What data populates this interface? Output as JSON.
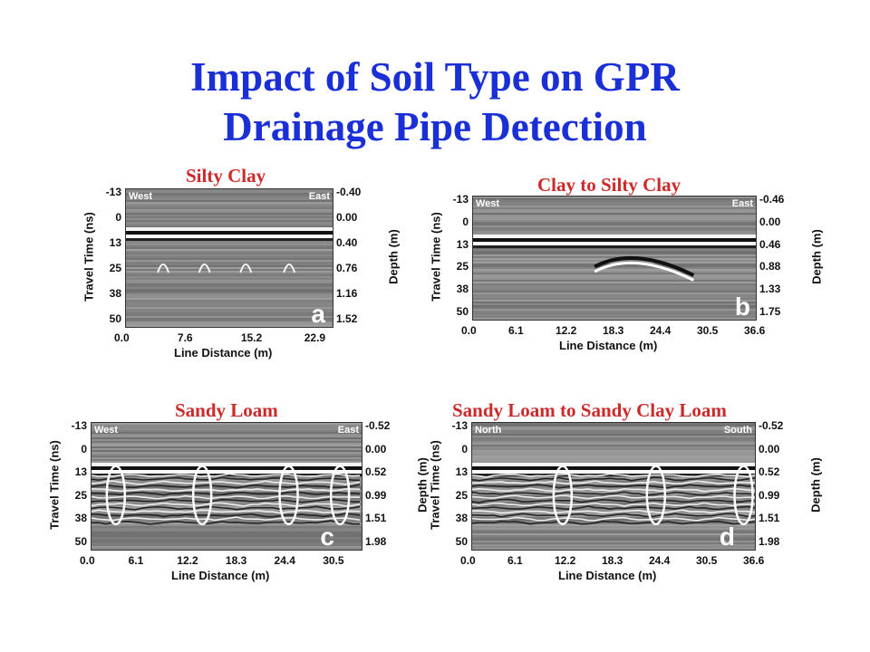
{
  "slide": {
    "title_line1": "Impact of Soil Type on GPR",
    "title_line2": "Drainage Pipe Detection"
  },
  "panels": [
    {
      "id": "a",
      "title": "Silty Clay",
      "left_dir": "West",
      "right_dir": "East",
      "time_ticks": [
        "-13",
        "0",
        "13",
        "25",
        "38",
        "50"
      ],
      "depth_ticks": [
        "-0.40",
        "0.00",
        "0.40",
        "0.76",
        "1.16",
        "1.52"
      ],
      "x_ticks": [
        "0.0",
        "7.6",
        "15.2",
        "22.9"
      ],
      "y_label": "Travel Time (ns)",
      "y2_label": "Depth (m)",
      "x_label": "Line Distance (m)"
    },
    {
      "id": "b",
      "title": "Clay to Silty Clay",
      "left_dir": "West",
      "right_dir": "East",
      "time_ticks": [
        "-13",
        "0",
        "13",
        "25",
        "38",
        "50"
      ],
      "depth_ticks": [
        "-0.46",
        "0.00",
        "0.46",
        "0.88",
        "1.33",
        "1.75"
      ],
      "x_ticks": [
        "0.0",
        "6.1",
        "12.2",
        "18.3",
        "24.4",
        "30.5",
        "36.6"
      ],
      "y_label": "Travel Time (ns)",
      "y2_label": "Depth (m)",
      "x_label": "Line Distance (m)"
    },
    {
      "id": "c",
      "title": "Sandy Loam",
      "left_dir": "West",
      "right_dir": "East",
      "time_ticks": [
        "-13",
        "0",
        "13",
        "25",
        "38",
        "50"
      ],
      "depth_ticks": [
        "-0.52",
        "0.00",
        "0.52",
        "0.99",
        "1.51",
        "1.98"
      ],
      "x_ticks": [
        "0.0",
        "6.1",
        "12.2",
        "18.3",
        "24.4",
        "30.5"
      ],
      "y_label": "Travel Time (ns)",
      "y2_label": "Depth (m)",
      "x_label": "Line Distance (m)"
    },
    {
      "id": "d",
      "title": "Sandy Loam to Sandy Clay Loam",
      "left_dir": "North",
      "right_dir": "South",
      "time_ticks": [
        "-13",
        "0",
        "13",
        "25",
        "38",
        "50"
      ],
      "depth_ticks": [
        "-0.52",
        "0.00",
        "0.52",
        "0.99",
        "1.51",
        "1.98"
      ],
      "x_ticks": [
        "0.0",
        "6.1",
        "12.2",
        "18.3",
        "24.4",
        "30.5",
        "36.6"
      ],
      "y_label": "Travel Time (ns)",
      "y2_label": "Depth (m)",
      "x_label": "Line Distance (m)"
    }
  ]
}
